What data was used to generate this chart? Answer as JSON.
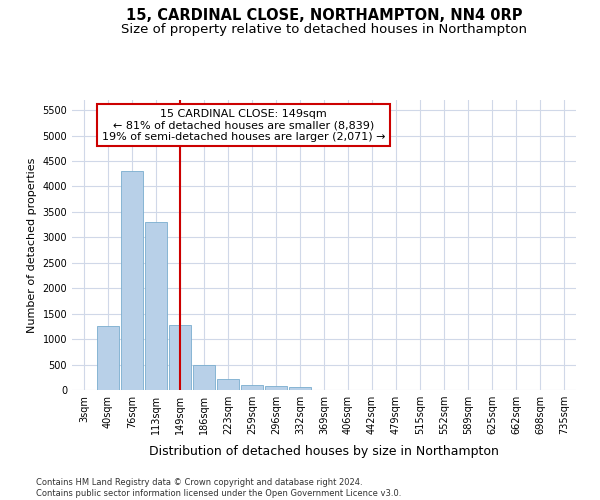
{
  "title": "15, CARDINAL CLOSE, NORTHAMPTON, NN4 0RP",
  "subtitle": "Size of property relative to detached houses in Northampton",
  "xlabel": "Distribution of detached houses by size in Northampton",
  "ylabel": "Number of detached properties",
  "footer_line1": "Contains HM Land Registry data © Crown copyright and database right 2024.",
  "footer_line2": "Contains public sector information licensed under the Open Government Licence v3.0.",
  "bar_labels": [
    "3sqm",
    "40sqm",
    "76sqm",
    "113sqm",
    "149sqm",
    "186sqm",
    "223sqm",
    "259sqm",
    "296sqm",
    "332sqm",
    "369sqm",
    "406sqm",
    "442sqm",
    "479sqm",
    "515sqm",
    "552sqm",
    "589sqm",
    "625sqm",
    "662sqm",
    "698sqm",
    "735sqm"
  ],
  "bar_values": [
    0,
    1250,
    4300,
    3300,
    1270,
    490,
    220,
    100,
    80,
    60,
    0,
    0,
    0,
    0,
    0,
    0,
    0,
    0,
    0,
    0,
    0
  ],
  "bar_color": "#b8d0e8",
  "bar_edgecolor": "#7aadce",
  "vline_x_index": 4,
  "vline_color": "#cc0000",
  "annotation_line1": "15 CARDINAL CLOSE: 149sqm",
  "annotation_line2": "← 81% of detached houses are smaller (8,839)",
  "annotation_line3": "19% of semi-detached houses are larger (2,071) →",
  "ylim": [
    0,
    5700
  ],
  "yticks": [
    0,
    500,
    1000,
    1500,
    2000,
    2500,
    3000,
    3500,
    4000,
    4500,
    5000,
    5500
  ],
  "background_color": "#ffffff",
  "grid_color": "#d0d8e8",
  "title_fontsize": 10.5,
  "subtitle_fontsize": 9.5,
  "xlabel_fontsize": 9,
  "ylabel_fontsize": 8,
  "tick_fontsize": 7,
  "annotation_fontsize": 8,
  "footer_fontsize": 6
}
